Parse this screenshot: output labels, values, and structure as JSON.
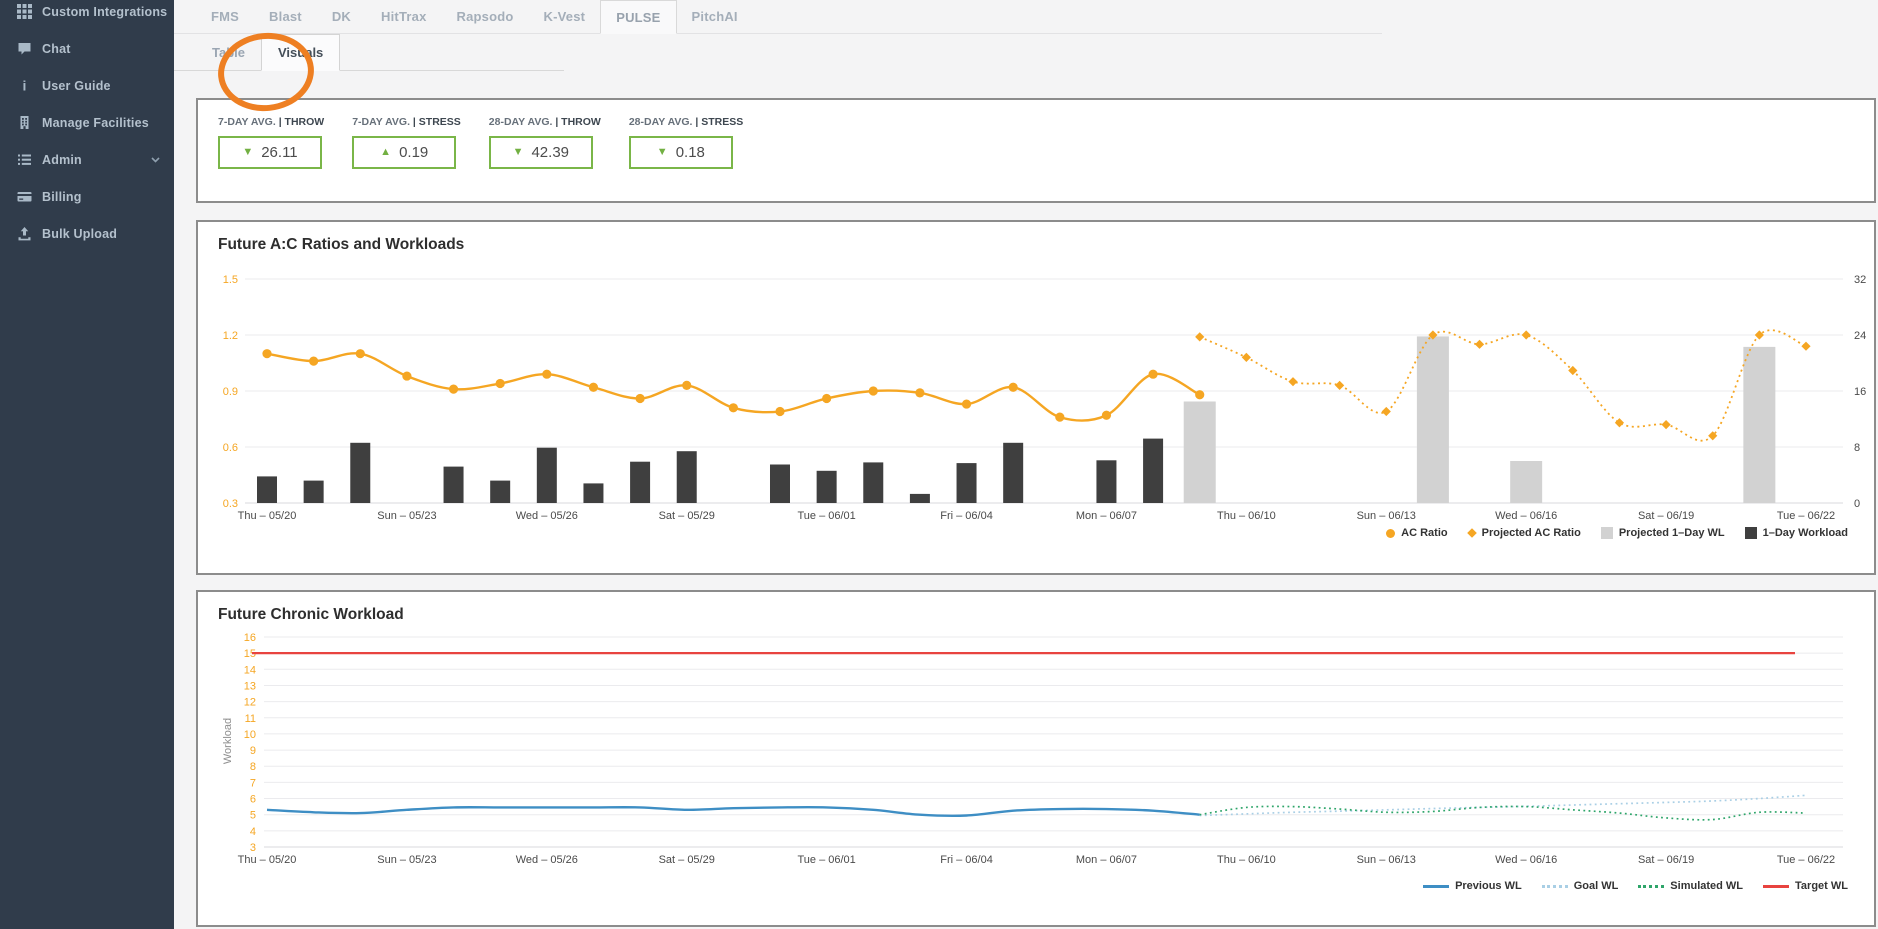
{
  "sidebar": {
    "items": [
      {
        "label": "Custom Integrations",
        "icon": "grid-icon",
        "chevron": true
      },
      {
        "label": "Chat",
        "icon": "chat-icon",
        "chevron": false
      },
      {
        "label": "User Guide",
        "icon": "info-icon",
        "chevron": false
      },
      {
        "label": "Manage Facilities",
        "icon": "building-icon",
        "chevron": false
      },
      {
        "label": "Admin",
        "icon": "list-icon",
        "chevron": true
      },
      {
        "label": "Billing",
        "icon": "card-icon",
        "chevron": false
      },
      {
        "label": "Bulk Upload",
        "icon": "upload-icon",
        "chevron": false
      }
    ]
  },
  "tabs": {
    "items": [
      "FMS",
      "Blast",
      "DK",
      "HitTrax",
      "Rapsodo",
      "K-Vest",
      "PULSE",
      "PitchAI"
    ],
    "active": "PULSE"
  },
  "subtabs": {
    "items": [
      "Table",
      "Visuals"
    ],
    "active": "Visuals"
  },
  "annotation": {
    "shape": "hand-drawn-circle",
    "target": "Visuals",
    "color": "#ee7f22"
  },
  "stats": [
    {
      "label": "7-DAY AVG.",
      "category": "| THROW",
      "direction": "down",
      "value": "26.11"
    },
    {
      "label": "7-DAY AVG.",
      "category": "| STRESS",
      "direction": "up",
      "value": "0.19"
    },
    {
      "label": "28-DAY AVG.",
      "category": "| THROW",
      "direction": "down",
      "value": "42.39"
    },
    {
      "label": "28-DAY AVG.",
      "category": "| STRESS",
      "direction": "down",
      "value": "0.18"
    }
  ],
  "stat_colors": {
    "box_border": "#7ab648",
    "arrow": "#72b042"
  },
  "chart_data": [
    {
      "type": "bar+line combo",
      "title": "Future A:C Ratios and Workloads",
      "days_total": 34,
      "x_tick_labels": [
        "Thu – 05/20",
        "Sun – 05/23",
        "Wed – 05/26",
        "Sat – 05/29",
        "Tue – 06/01",
        "Fri – 06/04",
        "Mon – 06/07",
        "Thu – 06/10",
        "Sun – 06/13",
        "Wed – 06/16",
        "Sat – 06/19",
        "Tue – 06/22"
      ],
      "x_label_every_n_days": 3,
      "left_axis": {
        "ticks": [
          1.5,
          1.2,
          0.9,
          0.6,
          0.3
        ],
        "range": [
          0.3,
          1.5
        ],
        "color": "#f5a623"
      },
      "right_axis": {
        "ticks": [
          32,
          24,
          16,
          8,
          0
        ],
        "range": [
          0,
          32
        ],
        "color": "#4a4a4a"
      },
      "legend_position": "bottom-right",
      "series": [
        {
          "name": "AC Ratio",
          "type": "line",
          "style": "solid",
          "marker": "circle",
          "legend_marker": "circle",
          "color": "#f5a623",
          "axis": "left",
          "start_day": 1,
          "values": [
            1.1,
            1.06,
            1.1,
            0.98,
            0.91,
            0.94,
            0.99,
            0.92,
            0.86,
            0.93,
            0.81,
            0.79,
            0.86,
            0.9,
            0.89,
            0.83,
            0.92,
            0.76,
            0.77,
            0.99,
            0.88
          ]
        },
        {
          "name": "Projected AC Ratio",
          "type": "line",
          "style": "dotted",
          "marker": "diamond",
          "legend_marker": "diamond",
          "color": "#f5a623",
          "axis": "left",
          "start_day": 21,
          "values": [
            1.19,
            1.08,
            0.95,
            0.93,
            0.79,
            1.2,
            1.15,
            1.2,
            1.01,
            0.73,
            0.72,
            0.66,
            1.2,
            1.14
          ]
        },
        {
          "name": "Projected 1–Day WL",
          "type": "bar",
          "legend_marker": "square",
          "color": "#d2d2d2",
          "axis": "right",
          "start_day": 21,
          "values": [
            14.5,
            0,
            0,
            0,
            0,
            23.8,
            0,
            6.0,
            0,
            0,
            0,
            0,
            22.3,
            0
          ]
        },
        {
          "name": "1–Day Workload",
          "type": "bar",
          "legend_marker": "square",
          "color": "#3f3f3f",
          "axis": "right",
          "start_day": 1,
          "values": [
            3.8,
            3.2,
            8.6,
            0,
            5.2,
            3.2,
            7.9,
            2.8,
            5.9,
            7.4,
            0,
            5.5,
            4.6,
            5.8,
            1.3,
            5.7,
            8.6,
            0,
            6.1,
            9.2
          ]
        }
      ]
    },
    {
      "type": "line",
      "title": "Future Chronic Workload",
      "ylabel": "Workload",
      "days_total": 34,
      "x_tick_labels": [
        "Thu – 05/20",
        "Sun – 05/23",
        "Wed – 05/26",
        "Sat – 05/29",
        "Tue – 06/01",
        "Fri – 06/04",
        "Mon – 06/07",
        "Thu – 06/10",
        "Sun – 06/13",
        "Wed – 06/16",
        "Sat – 06/19",
        "Tue – 06/22"
      ],
      "x_label_every_n_days": 3,
      "y_ticks": [
        16,
        15,
        14,
        13,
        12,
        11,
        10,
        9,
        8,
        7,
        6,
        5,
        4,
        3
      ],
      "y_range": [
        3,
        16
      ],
      "tick_color": "#f5a623",
      "legend_position": "bottom-right",
      "series": [
        {
          "name": "Previous WL",
          "type": "line",
          "style": "solid",
          "legend_marker": "line",
          "color": "#3e8ec4",
          "start_day": 1,
          "values": [
            5.3,
            5.15,
            5.1,
            5.3,
            5.45,
            5.45,
            5.45,
            5.45,
            5.45,
            5.3,
            5.4,
            5.45,
            5.45,
            5.3,
            5.0,
            4.95,
            5.25,
            5.35,
            5.35,
            5.25,
            5.0
          ]
        },
        {
          "name": "Goal WL",
          "type": "line",
          "style": "dotted",
          "legend_marker": "dotted-line",
          "color": "#a9cfe5",
          "start_day": 21,
          "values": [
            4.95,
            5.05,
            5.15,
            5.22,
            5.3,
            5.38,
            5.45,
            5.52,
            5.6,
            5.68,
            5.76,
            5.85,
            6.0,
            6.2
          ]
        },
        {
          "name": "Simulated WL",
          "type": "line",
          "style": "dotted",
          "legend_marker": "dotted-line",
          "color": "#2ea56a",
          "start_day": 21,
          "values": [
            5.0,
            5.45,
            5.5,
            5.35,
            5.15,
            5.2,
            5.45,
            5.5,
            5.3,
            5.1,
            4.8,
            4.7,
            5.15,
            5.1
          ]
        },
        {
          "name": "Target WL",
          "type": "line",
          "style": "solid",
          "legend_marker": "line",
          "color": "#e8433f",
          "start_day": 1,
          "end_day": 34,
          "constant_value": 15
        }
      ]
    }
  ]
}
